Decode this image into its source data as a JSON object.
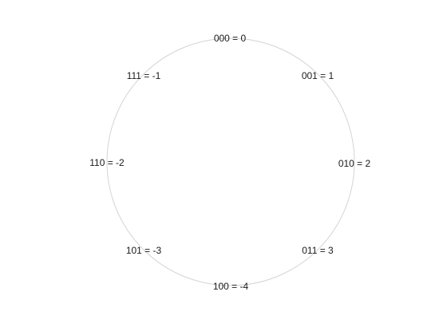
{
  "diagram": {
    "ring_color": "#d4d4d4",
    "text_color": "#1a1a1a",
    "labels": [
      {
        "text": "000 =  0",
        "position": "top"
      },
      {
        "text": "001 =  1",
        "position": "top-right"
      },
      {
        "text": "010 =  2",
        "position": "right"
      },
      {
        "text": "011 =  3",
        "position": "bottom-right"
      },
      {
        "text": "100 = -4",
        "position": "bottom"
      },
      {
        "text": "101 = -3",
        "position": "bottom-left"
      },
      {
        "text": "110 = -2",
        "position": "left"
      },
      {
        "text": "111 = -1",
        "position": "top-left"
      }
    ]
  }
}
